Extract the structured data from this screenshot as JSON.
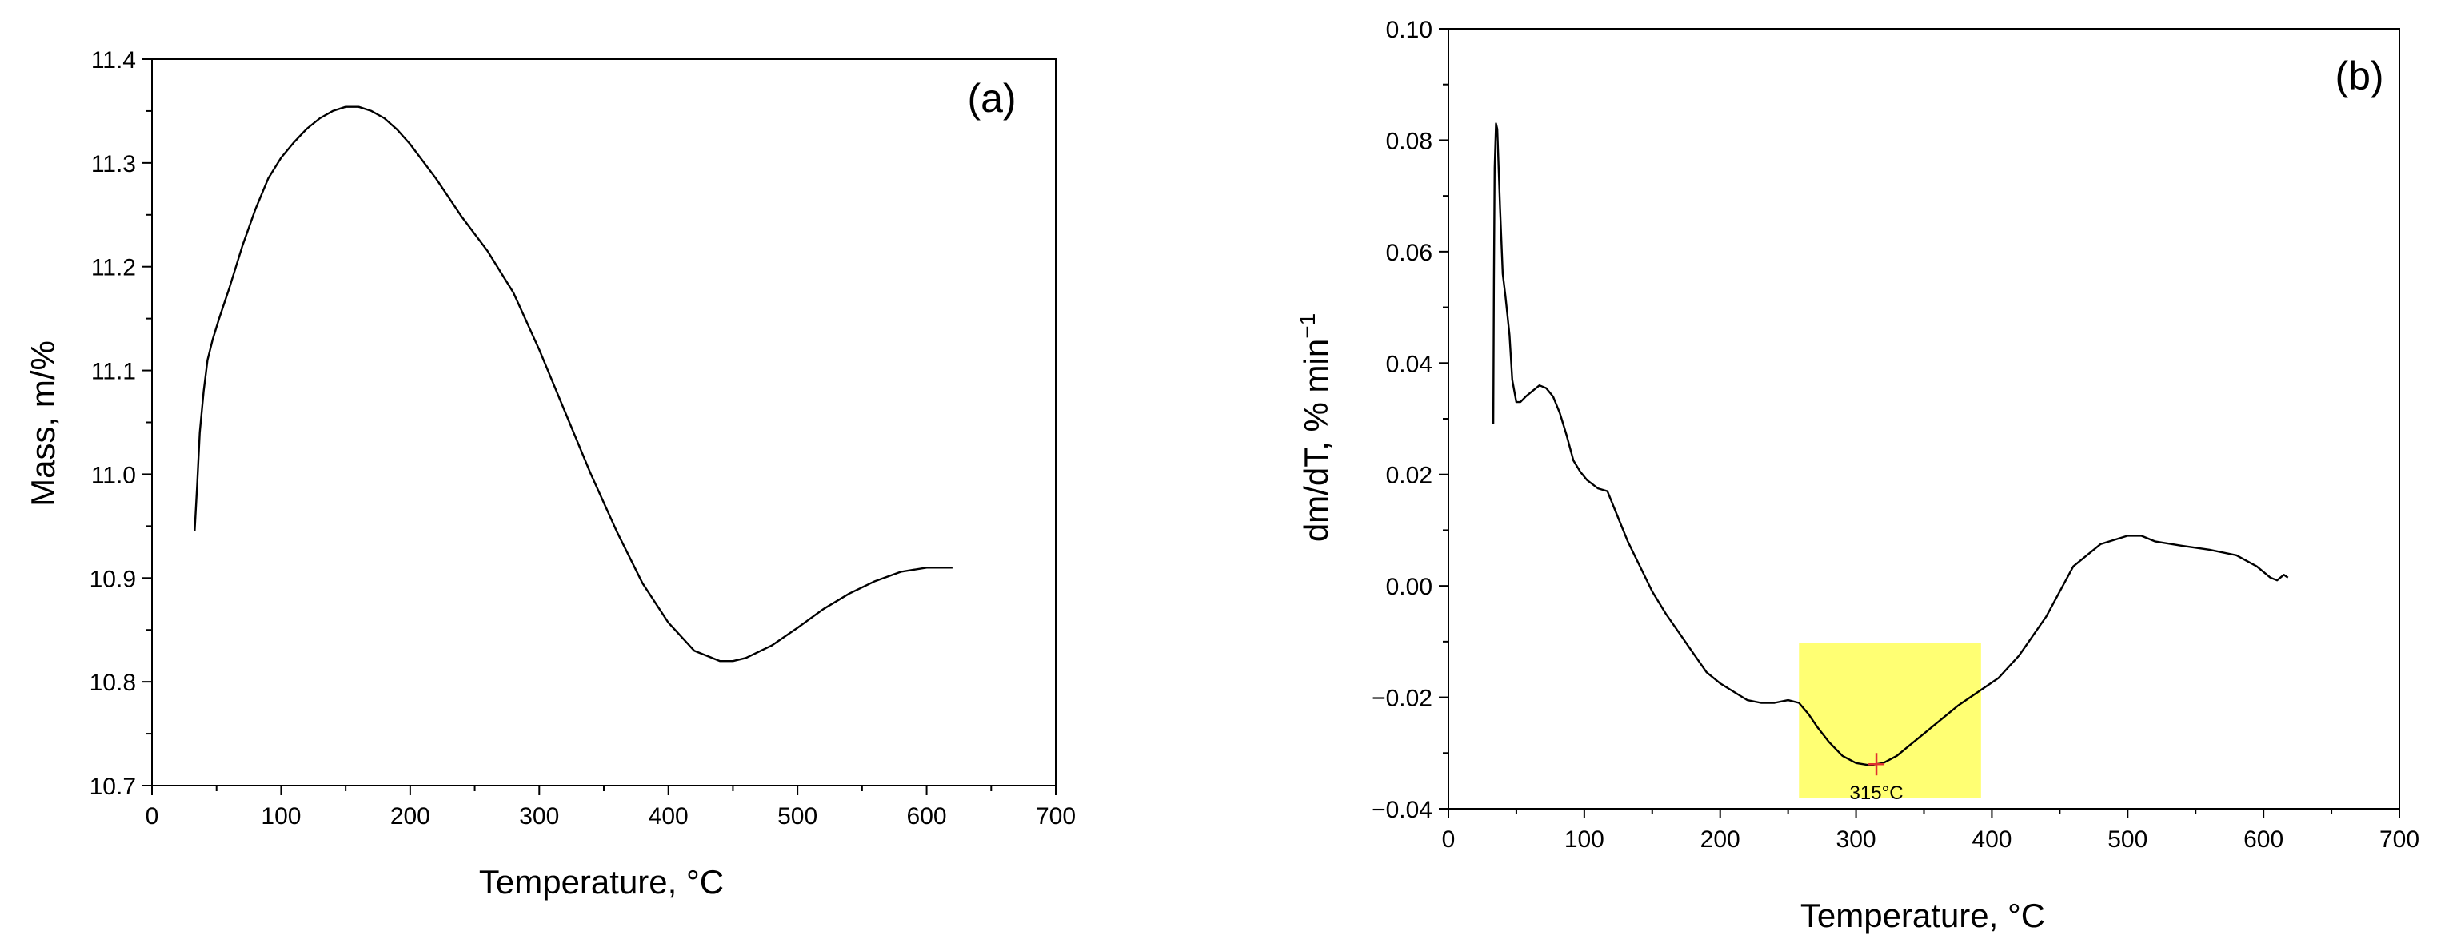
{
  "chart_data": [
    {
      "type": "line",
      "panel_label": "(a)",
      "xlabel": "Temperature, °C",
      "ylabel": "Mass, m/%",
      "xlim": [
        0,
        700
      ],
      "ylim": [
        10.7,
        11.4
      ],
      "xticks": [
        "0",
        "100",
        "200",
        "300",
        "400",
        "500",
        "600",
        "700"
      ],
      "yticks": [
        "10.7",
        "10.8",
        "10.9",
        "11.0",
        "11.1",
        "11.2",
        "11.3",
        "11.4"
      ],
      "grid": false,
      "series": [
        {
          "x": [
            33,
            35,
            37,
            40,
            43,
            47,
            52,
            60,
            70,
            80,
            90,
            100,
            110,
            120,
            130,
            140,
            150,
            160,
            170,
            180,
            190,
            200,
            220,
            240,
            260,
            280,
            300,
            320,
            340,
            360,
            380,
            400,
            420,
            440,
            450,
            460,
            480,
            500,
            520,
            540,
            560,
            580,
            600,
            620
          ],
          "y": [
            10.945,
            10.99,
            11.04,
            11.08,
            11.11,
            11.13,
            11.15,
            11.18,
            11.22,
            11.255,
            11.285,
            11.305,
            11.32,
            11.333,
            11.343,
            11.35,
            11.354,
            11.354,
            11.35,
            11.343,
            11.332,
            11.318,
            11.285,
            11.248,
            11.215,
            11.175,
            11.12,
            11.06,
            11.0,
            10.945,
            10.895,
            10.857,
            10.83,
            10.82,
            10.82,
            10.823,
            10.835,
            10.852,
            10.87,
            10.885,
            10.897,
            10.906,
            10.91,
            10.91
          ]
        }
      ]
    },
    {
      "type": "line",
      "panel_label": "(b)",
      "xlabel": "Temperature, °C",
      "ylabel": "dm/dT, % min",
      "ylabel_sup": "−1",
      "xlim": [
        0,
        700
      ],
      "ylim": [
        -0.04,
        0.1
      ],
      "xticks": [
        "0",
        "100",
        "200",
        "300",
        "400",
        "500",
        "600",
        "700"
      ],
      "yticks": [
        "−0.04",
        "−0.02",
        "0.00",
        "0.02",
        "0.04",
        "0.06",
        "0.08",
        "0.10"
      ],
      "grid": false,
      "highlight": {
        "x": [
          258,
          392
        ],
        "y": [
          -0.038,
          -0.0102
        ],
        "color": "#ffff73"
      },
      "annotation": {
        "text": "315°C",
        "x": 315,
        "y": -0.032,
        "marker_color": "#e03030"
      },
      "series": [
        {
          "x": [
            33,
            33.5,
            34,
            35,
            36,
            38,
            40,
            42,
            45,
            47,
            50,
            53,
            57,
            62,
            67,
            72,
            77,
            82,
            87,
            92,
            97,
            102,
            110,
            117,
            122,
            127,
            132,
            140,
            150,
            160,
            170,
            180,
            190,
            200,
            210,
            220,
            230,
            240,
            250,
            258,
            265,
            272,
            280,
            290,
            300,
            310,
            315,
            320,
            330,
            340,
            350,
            360,
            375,
            390,
            405,
            420,
            440,
            460,
            480,
            500,
            510,
            520,
            540,
            560,
            580,
            595,
            605,
            610,
            615,
            618
          ],
          "y": [
            0.029,
            0.055,
            0.075,
            0.083,
            0.082,
            0.068,
            0.056,
            0.052,
            0.045,
            0.037,
            0.033,
            0.033,
            0.034,
            0.035,
            0.036,
            0.0355,
            0.034,
            0.031,
            0.027,
            0.0225,
            0.0205,
            0.019,
            0.0175,
            0.017,
            0.014,
            0.011,
            0.008,
            0.004,
            -0.001,
            -0.005,
            -0.0085,
            -0.012,
            -0.0155,
            -0.0175,
            -0.019,
            -0.0205,
            -0.021,
            -0.021,
            -0.0205,
            -0.021,
            -0.023,
            -0.0255,
            -0.028,
            -0.0305,
            -0.0318,
            -0.0322,
            -0.032,
            -0.0318,
            -0.0305,
            -0.0285,
            -0.0265,
            -0.0245,
            -0.0215,
            -0.019,
            -0.0165,
            -0.0125,
            -0.0055,
            0.0035,
            0.0075,
            0.009,
            0.009,
            0.008,
            0.0072,
            0.0065,
            0.0055,
            0.0035,
            0.0015,
            0.001,
            0.002,
            0.0015
          ]
        }
      ]
    }
  ]
}
